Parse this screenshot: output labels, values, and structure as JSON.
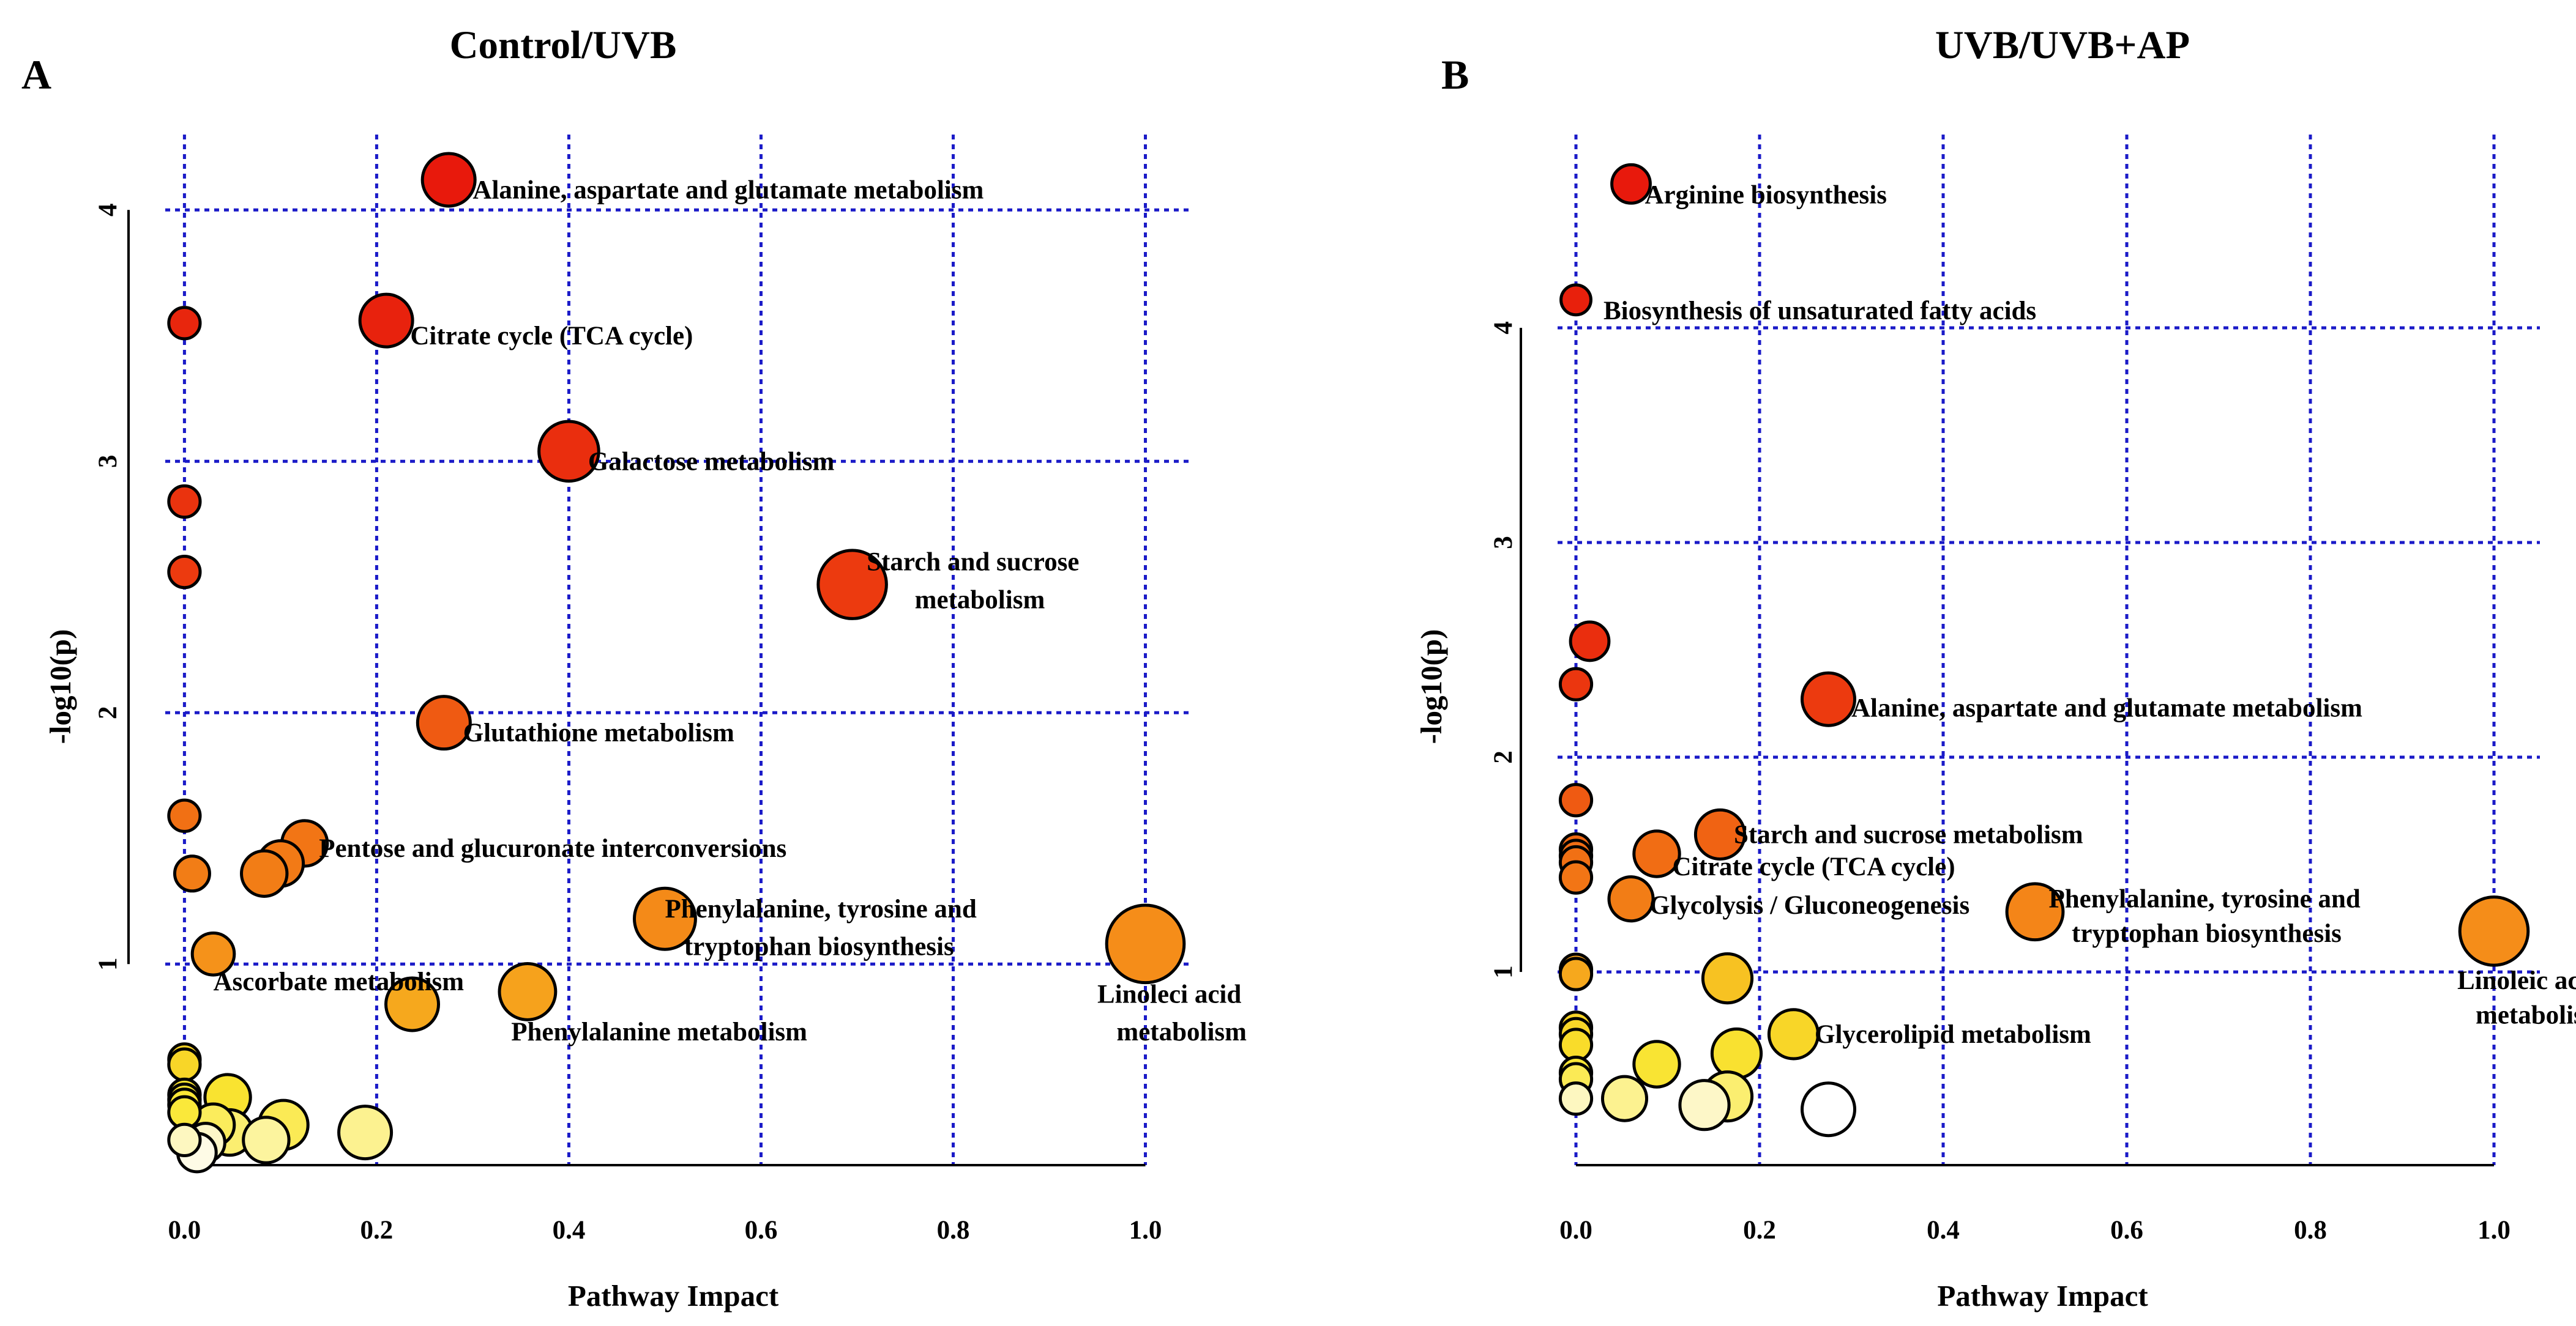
{
  "chart_data": [
    {
      "type": "scatter",
      "panel_letter": "A",
      "title": "Control/UVB",
      "xlabel": "Pathway Impact",
      "ylabel": "-log10(p)",
      "xlim": [
        -0.02,
        1.05
      ],
      "ylim": [
        0.2,
        4.3
      ],
      "x_ticks": [
        0.0,
        0.2,
        0.4,
        0.6,
        0.8,
        1.0
      ],
      "x_tick_labels": [
        "0.0",
        "0.2",
        "0.4",
        "0.6",
        "0.8",
        "1.0"
      ],
      "y_ticks": [
        1,
        2,
        3,
        4
      ],
      "y_tick_labels": [
        "1",
        "2",
        "3",
        "4"
      ],
      "points": [
        {
          "x": 0.275,
          "y": 4.12,
          "size": 0.5,
          "color": "#e8190c"
        },
        {
          "x": 0.21,
          "y": 3.56,
          "size": 0.5,
          "color": "#e8220d"
        },
        {
          "x": 0.0,
          "y": 3.55,
          "size": 0.2,
          "color": "#e8260d"
        },
        {
          "x": 0.4,
          "y": 3.04,
          "size": 0.6,
          "color": "#ea2e0e"
        },
        {
          "x": 0.0,
          "y": 2.84,
          "size": 0.2,
          "color": "#ea330e"
        },
        {
          "x": 0.695,
          "y": 2.51,
          "size": 0.72,
          "color": "#ec3a0f"
        },
        {
          "x": 0.0,
          "y": 2.56,
          "size": 0.2,
          "color": "#ec3a0f"
        },
        {
          "x": 0.27,
          "y": 1.96,
          "size": 0.5,
          "color": "#ef5a12"
        },
        {
          "x": 0.0,
          "y": 1.59,
          "size": 0.2,
          "color": "#f17014"
        },
        {
          "x": 0.125,
          "y": 1.48,
          "size": 0.4,
          "color": "#f27515"
        },
        {
          "x": 0.1,
          "y": 1.4,
          "size": 0.4,
          "color": "#f27a16"
        },
        {
          "x": 0.083,
          "y": 1.36,
          "size": 0.4,
          "color": "#f27d16"
        },
        {
          "x": 0.008,
          "y": 1.36,
          "size": 0.25,
          "color": "#f27d16"
        },
        {
          "x": 0.5,
          "y": 1.18,
          "size": 0.62,
          "color": "#f48a18"
        },
        {
          "x": 1.0,
          "y": 1.08,
          "size": 0.85,
          "color": "#f58d19"
        },
        {
          "x": 0.03,
          "y": 1.04,
          "size": 0.35,
          "color": "#f5921a"
        },
        {
          "x": 0.357,
          "y": 0.89,
          "size": 0.55,
          "color": "#f6a21c"
        },
        {
          "x": 0.237,
          "y": 0.84,
          "size": 0.5,
          "color": "#f6a81d"
        },
        {
          "x": 0.0,
          "y": 0.62,
          "size": 0.2,
          "color": "#f8d426"
        },
        {
          "x": 0.0,
          "y": 0.6,
          "size": 0.2,
          "color": "#f8d628"
        },
        {
          "x": 0.045,
          "y": 0.47,
          "size": 0.4,
          "color": "#f9e330"
        },
        {
          "x": 0.0,
          "y": 0.48,
          "size": 0.2,
          "color": "#f9e130"
        },
        {
          "x": 0.0,
          "y": 0.46,
          "size": 0.2,
          "color": "#f9e433"
        },
        {
          "x": 0.0,
          "y": 0.44,
          "size": 0.2,
          "color": "#fae636"
        },
        {
          "x": 0.0,
          "y": 0.41,
          "size": 0.2,
          "color": "#fae83a"
        },
        {
          "x": 0.103,
          "y": 0.36,
          "size": 0.45,
          "color": "#fbea55"
        },
        {
          "x": 0.03,
          "y": 0.36,
          "size": 0.35,
          "color": "#fbec5c"
        },
        {
          "x": 0.047,
          "y": 0.33,
          "size": 0.4,
          "color": "#fbee70"
        },
        {
          "x": 0.188,
          "y": 0.33,
          "size": 0.5,
          "color": "#fcf290"
        },
        {
          "x": 0.085,
          "y": 0.3,
          "size": 0.4,
          "color": "#fcf49e"
        },
        {
          "x": 0.0,
          "y": 0.3,
          "size": 0.2,
          "color": "#fdf7c0"
        },
        {
          "x": 0.022,
          "y": 0.29,
          "size": 0.3,
          "color": "#fdf7c8"
        },
        {
          "x": 0.013,
          "y": 0.25,
          "size": 0.3,
          "color": "#fefbe6"
        }
      ],
      "labels": [
        {
          "text": "Alanine, aspartate and glutamate metabolism",
          "x": 0.3,
          "y": 4.08
        },
        {
          "text": "Citrate cycle (TCA cycle)",
          "x": 0.235,
          "y": 3.5
        },
        {
          "text": "Galactose metabolism",
          "x": 0.42,
          "y": 3.0
        },
        {
          "text": "Starch and sucrose",
          "x": 0.71,
          "y": 2.6
        },
        {
          "text": "metabolism",
          "x": 0.76,
          "y": 2.45
        },
        {
          "text": "Glutathione metabolism",
          "x": 0.29,
          "y": 1.92
        },
        {
          "text": "Pentose and glucuronate interconversions",
          "x": 0.14,
          "y": 1.46
        },
        {
          "text": "Phenylalanine, tyrosine and",
          "x": 0.5,
          "y": 1.22
        },
        {
          "text": "tryptophan biosynthesis",
          "x": 0.52,
          "y": 1.07
        },
        {
          "text": "Linoleci acid",
          "x": 0.95,
          "y": 0.88
        },
        {
          "text": "metabolism",
          "x": 0.97,
          "y": 0.73
        },
        {
          "text": "Ascorbate  metabolism",
          "x": 0.03,
          "y": 0.93
        },
        {
          "text": "Phenylalanine metabolism",
          "x": 0.34,
          "y": 0.73
        }
      ]
    },
    {
      "type": "scatter",
      "panel_letter": "B",
      "title": "UVB/UVB+AP",
      "xlabel": "Pathway Impact",
      "ylabel": "-log10(p)",
      "xlim": [
        -0.02,
        1.05
      ],
      "ylim": [
        0.1,
        4.9
      ],
      "x_ticks": [
        0.0,
        0.2,
        0.4,
        0.6,
        0.8,
        1.0
      ],
      "x_tick_labels": [
        "0.0",
        "0.2",
        "0.4",
        "0.6",
        "0.8",
        "1.0"
      ],
      "y_ticks": [
        1,
        2,
        3,
        4
      ],
      "y_tick_labels": [
        "1",
        "2",
        "3",
        "4"
      ],
      "points": [
        {
          "x": 0.06,
          "y": 4.67,
          "size": 0.3,
          "color": "#e8190c"
        },
        {
          "x": 0.0,
          "y": 4.13,
          "size": 0.18,
          "color": "#e8200c"
        },
        {
          "x": 0.015,
          "y": 2.54,
          "size": 0.3,
          "color": "#ea2e0e"
        },
        {
          "x": 0.0,
          "y": 2.34,
          "size": 0.2,
          "color": "#eb360f"
        },
        {
          "x": 0.275,
          "y": 2.27,
          "size": 0.5,
          "color": "#ec3a0f"
        },
        {
          "x": 0.0,
          "y": 1.8,
          "size": 0.2,
          "color": "#ef5a12"
        },
        {
          "x": 0.157,
          "y": 1.64,
          "size": 0.45,
          "color": "#f06313"
        },
        {
          "x": 0.0,
          "y": 1.57,
          "size": 0.2,
          "color": "#f06813"
        },
        {
          "x": 0.0,
          "y": 1.54,
          "size": 0.2,
          "color": "#f16d14"
        },
        {
          "x": 0.088,
          "y": 1.55,
          "size": 0.4,
          "color": "#f16d14"
        },
        {
          "x": 0.0,
          "y": 1.51,
          "size": 0.2,
          "color": "#f17014"
        },
        {
          "x": 0.0,
          "y": 1.44,
          "size": 0.2,
          "color": "#f27515"
        },
        {
          "x": 0.06,
          "y": 1.34,
          "size": 0.38,
          "color": "#f27d16"
        },
        {
          "x": 0.5,
          "y": 1.28,
          "size": 0.55,
          "color": "#f48518"
        },
        {
          "x": 1.0,
          "y": 1.19,
          "size": 0.72,
          "color": "#f58d19"
        },
        {
          "x": 0.0,
          "y": 1.01,
          "size": 0.2,
          "color": "#f6a21c"
        },
        {
          "x": 0.0,
          "y": 0.99,
          "size": 0.2,
          "color": "#f6a81d"
        },
        {
          "x": 0.165,
          "y": 0.97,
          "size": 0.45,
          "color": "#f7c222"
        },
        {
          "x": 0.0,
          "y": 0.74,
          "size": 0.2,
          "color": "#f8d426"
        },
        {
          "x": 0.0,
          "y": 0.71,
          "size": 0.2,
          "color": "#f8d628"
        },
        {
          "x": 0.0,
          "y": 0.66,
          "size": 0.2,
          "color": "#f9dc2a"
        },
        {
          "x": 0.237,
          "y": 0.71,
          "size": 0.45,
          "color": "#f8d628"
        },
        {
          "x": 0.175,
          "y": 0.62,
          "size": 0.45,
          "color": "#f9e130"
        },
        {
          "x": 0.088,
          "y": 0.57,
          "size": 0.4,
          "color": "#f9e433"
        },
        {
          "x": 0.0,
          "y": 0.53,
          "size": 0.2,
          "color": "#fae636"
        },
        {
          "x": 0.0,
          "y": 0.5,
          "size": 0.2,
          "color": "#fbea55"
        },
        {
          "x": 0.165,
          "y": 0.42,
          "size": 0.45,
          "color": "#fbee70"
        },
        {
          "x": 0.053,
          "y": 0.41,
          "size": 0.38,
          "color": "#fcf290"
        },
        {
          "x": 0.0,
          "y": 0.41,
          "size": 0.2,
          "color": "#fdf7c0"
        },
        {
          "x": 0.14,
          "y": 0.38,
          "size": 0.45,
          "color": "#fdf7c8"
        },
        {
          "x": 0.275,
          "y": 0.36,
          "size": 0.5,
          "color": "#ffffff"
        }
      ],
      "labels": [
        {
          "text": "Arginine biosynthesis",
          "x": 0.075,
          "y": 4.62
        },
        {
          "text": "Biosynthesis of unsaturated fatty acids",
          "x": 0.03,
          "y": 4.08
        },
        {
          "text": "Alanine, aspartate and glutamate metabolism",
          "x": 0.3,
          "y": 2.23
        },
        {
          "text": "Starch and sucrose metabolism",
          "x": 0.172,
          "y": 1.64
        },
        {
          "text": "Citrate cycle (TCA cycle)",
          "x": 0.105,
          "y": 1.49
        },
        {
          "text": "Glycolysis / Gluconeogenesis",
          "x": 0.08,
          "y": 1.31
        },
        {
          "text": "Phenylalanine, tyrosine and",
          "x": 0.515,
          "y": 1.34
        },
        {
          "text": "tryptophan biosynthesis",
          "x": 0.54,
          "y": 1.18
        },
        {
          "text": "Linoleic acid",
          "x": 0.96,
          "y": 0.96
        },
        {
          "text": "metabolism",
          "x": 0.98,
          "y": 0.8
        },
        {
          "text": "Glycerolipid metabolism",
          "x": 0.26,
          "y": 0.71
        }
      ]
    }
  ]
}
